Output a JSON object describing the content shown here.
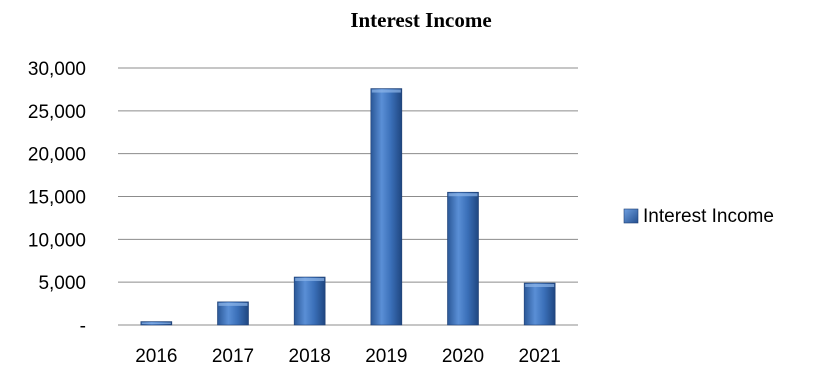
{
  "chart_data": {
    "type": "bar",
    "title": "Interest Income",
    "categories": [
      "2016",
      "2017",
      "2018",
      "2019",
      "2020",
      "2021"
    ],
    "series": [
      {
        "name": "Interest Income",
        "values": [
          400,
          2700,
          5600,
          27600,
          15500,
          4900
        ],
        "color": "#3a6fb8"
      }
    ],
    "ylim": [
      0,
      30000
    ],
    "y_ticks": [
      0,
      5000,
      10000,
      15000,
      20000,
      25000,
      30000
    ],
    "y_tick_labels": [
      "-",
      "5,000",
      "10,000",
      "15,000",
      "20,000",
      "25,000",
      "30,000"
    ],
    "xlabel": "",
    "ylabel": "",
    "grid": true,
    "legend": {
      "position": "right",
      "entries": [
        "Interest Income"
      ]
    }
  }
}
